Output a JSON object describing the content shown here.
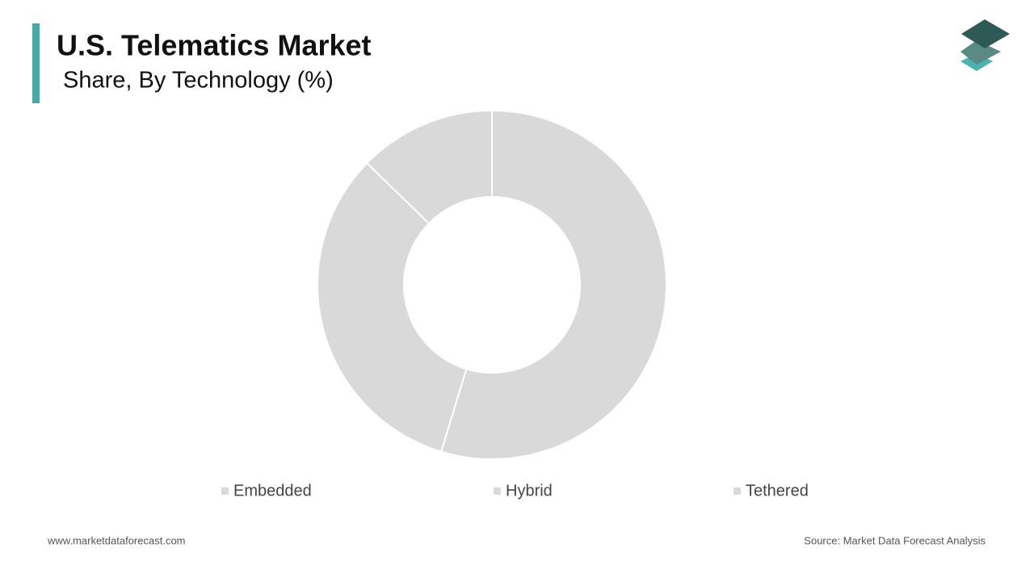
{
  "chart_data": {
    "type": "donut",
    "title": "U.S. Telematics Market",
    "subtitle": "Share, By Technology (%)",
    "categories": [
      "Embedded",
      "Hybrid",
      "Tethered"
    ],
    "values": [
      54.7,
      32.6,
      12.7
    ],
    "colors": [
      "#d9d9d9",
      "#d9d9d9",
      "#d9d9d9"
    ],
    "footer_left": "www.marketdataforecast.com",
    "footer_right": "Source: Market Data Forecast Analysis"
  }
}
